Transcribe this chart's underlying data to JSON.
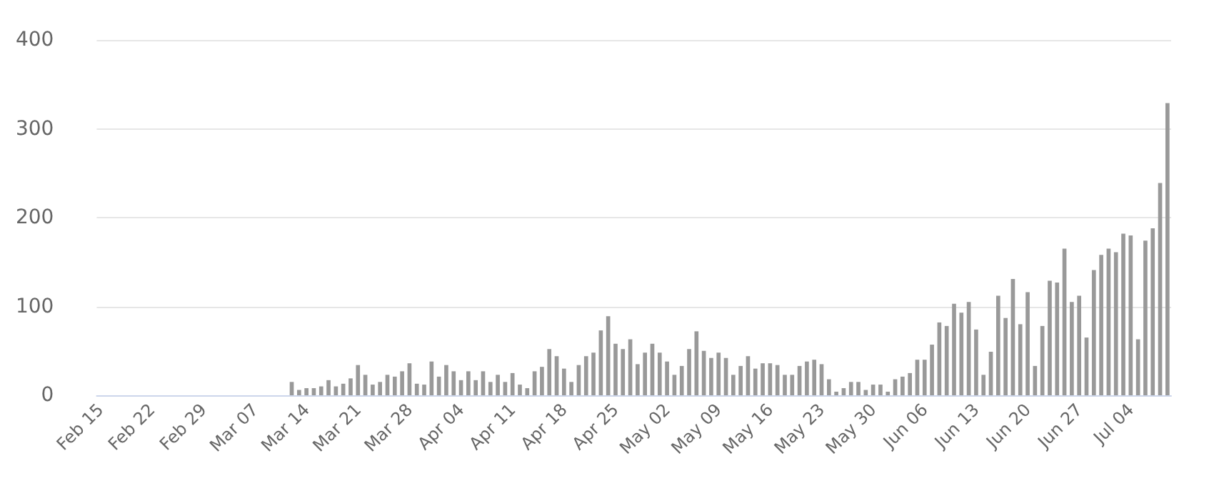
{
  "chart_data": {
    "type": "bar",
    "categories": [
      "Feb 15",
      null,
      null,
      null,
      null,
      null,
      null,
      "Feb 22",
      null,
      null,
      null,
      null,
      null,
      null,
      "Feb 29",
      null,
      null,
      null,
      null,
      null,
      null,
      "Mar 07",
      null,
      null,
      null,
      null,
      null,
      null,
      "Mar 14",
      null,
      null,
      null,
      null,
      null,
      null,
      "Mar 21",
      null,
      null,
      null,
      null,
      null,
      null,
      "Mar 28",
      null,
      null,
      null,
      null,
      null,
      null,
      "Apr 04",
      null,
      null,
      null,
      null,
      null,
      null,
      "Apr 11",
      null,
      null,
      null,
      null,
      null,
      null,
      "Apr 18",
      null,
      null,
      null,
      null,
      null,
      null,
      "Apr 25",
      null,
      null,
      null,
      null,
      null,
      null,
      "May 02",
      null,
      null,
      null,
      null,
      null,
      null,
      "May 09",
      null,
      null,
      null,
      null,
      null,
      null,
      "May 16",
      null,
      null,
      null,
      null,
      null,
      null,
      "May 23",
      null,
      null,
      null,
      null,
      null,
      null,
      "May 30",
      null,
      null,
      null,
      null,
      null,
      null,
      "Jun 06",
      null,
      null,
      null,
      null,
      null,
      null,
      "Jun 13",
      null,
      null,
      null,
      null,
      null,
      null,
      "Jun 20",
      null,
      null,
      null,
      null,
      null,
      null,
      "Jun 27",
      null,
      null,
      null,
      null,
      null,
      null,
      "Jul 04",
      null,
      null,
      null,
      null,
      null
    ],
    "values": [
      0,
      0,
      0,
      0,
      0,
      0,
      0,
      0,
      0,
      0,
      0,
      0,
      0,
      0,
      0,
      0,
      0,
      0,
      0,
      0,
      0,
      0,
      0,
      0,
      0,
      0,
      15,
      6,
      8,
      8,
      10,
      17,
      10,
      13,
      19,
      34,
      23,
      12,
      15,
      23,
      21,
      27,
      36,
      13,
      12,
      38,
      21,
      34,
      27,
      17,
      27,
      17,
      27,
      15,
      23,
      15,
      25,
      12,
      8,
      27,
      32,
      52,
      44,
      30,
      15,
      34,
      44,
      48,
      73,
      89,
      58,
      52,
      63,
      35,
      48,
      58,
      48,
      38,
      23,
      33,
      52,
      72,
      50,
      42,
      48,
      42,
      23,
      33,
      44,
      30,
      36,
      36,
      34,
      23,
      23,
      33,
      38,
      40,
      35,
      18,
      4,
      8,
      15,
      15,
      6,
      12,
      12,
      4,
      18,
      21,
      25,
      40,
      40,
      57,
      82,
      78,
      103,
      93,
      105,
      74,
      23,
      49,
      112,
      87,
      131,
      80,
      116,
      33,
      78,
      129,
      127,
      165,
      105,
      112,
      65,
      141,
      158,
      165,
      161,
      182,
      180,
      63,
      174,
      188,
      239,
      329
    ],
    "color": "#999999",
    "ylim": [
      0,
      400
    ],
    "yticks": [
      0,
      100,
      200,
      300,
      400
    ],
    "grid": "y"
  }
}
